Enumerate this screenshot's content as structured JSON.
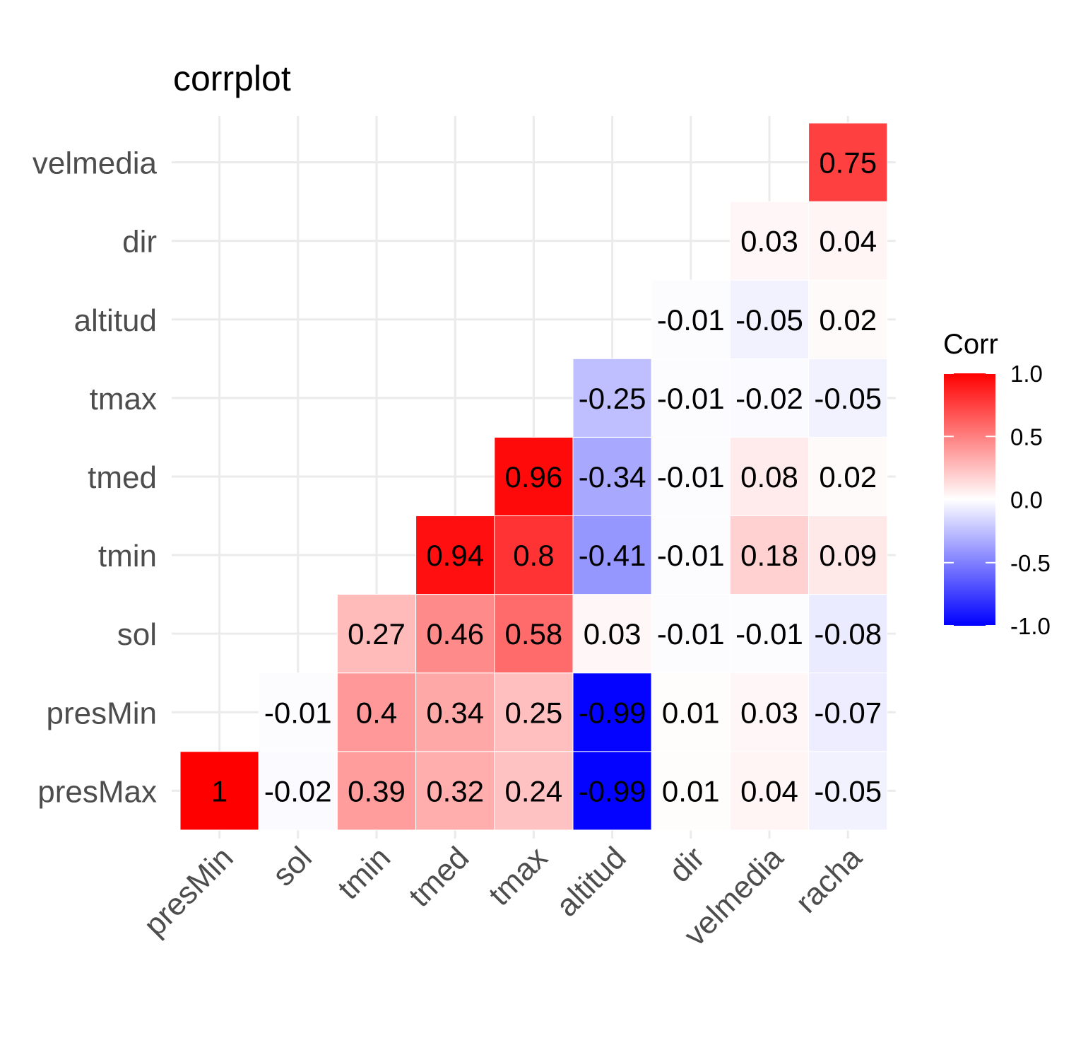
{
  "chart_data": {
    "type": "heatmap",
    "title": "corrplot",
    "x_categories": [
      "presMin",
      "sol",
      "tmin",
      "tmed",
      "tmax",
      "altitud",
      "dir",
      "velmedia",
      "racha"
    ],
    "y_categories": [
      "presMax",
      "presMin",
      "sol",
      "tmin",
      "tmed",
      "tmax",
      "altitud",
      "dir",
      "velmedia"
    ],
    "cells": [
      {
        "x": "presMin",
        "y": "presMax",
        "value": 1,
        "label": "1"
      },
      {
        "x": "sol",
        "y": "presMax",
        "value": -0.02,
        "label": "-0.02"
      },
      {
        "x": "tmin",
        "y": "presMax",
        "value": 0.39,
        "label": "0.39"
      },
      {
        "x": "tmed",
        "y": "presMax",
        "value": 0.32,
        "label": "0.32"
      },
      {
        "x": "tmax",
        "y": "presMax",
        "value": 0.24,
        "label": "0.24"
      },
      {
        "x": "altitud",
        "y": "presMax",
        "value": -0.99,
        "label": "-0.99"
      },
      {
        "x": "dir",
        "y": "presMax",
        "value": 0.01,
        "label": "0.01"
      },
      {
        "x": "velmedia",
        "y": "presMax",
        "value": 0.04,
        "label": "0.04"
      },
      {
        "x": "racha",
        "y": "presMax",
        "value": -0.05,
        "label": "-0.05"
      },
      {
        "x": "sol",
        "y": "presMin",
        "value": -0.01,
        "label": "-0.01"
      },
      {
        "x": "tmin",
        "y": "presMin",
        "value": 0.4,
        "label": "0.4"
      },
      {
        "x": "tmed",
        "y": "presMin",
        "value": 0.34,
        "label": "0.34"
      },
      {
        "x": "tmax",
        "y": "presMin",
        "value": 0.25,
        "label": "0.25"
      },
      {
        "x": "altitud",
        "y": "presMin",
        "value": -0.99,
        "label": "-0.99"
      },
      {
        "x": "dir",
        "y": "presMin",
        "value": 0.01,
        "label": "0.01"
      },
      {
        "x": "velmedia",
        "y": "presMin",
        "value": 0.03,
        "label": "0.03"
      },
      {
        "x": "racha",
        "y": "presMin",
        "value": -0.07,
        "label": "-0.07"
      },
      {
        "x": "tmin",
        "y": "sol",
        "value": 0.27,
        "label": "0.27"
      },
      {
        "x": "tmed",
        "y": "sol",
        "value": 0.46,
        "label": "0.46"
      },
      {
        "x": "tmax",
        "y": "sol",
        "value": 0.58,
        "label": "0.58"
      },
      {
        "x": "altitud",
        "y": "sol",
        "value": 0.03,
        "label": "0.03"
      },
      {
        "x": "dir",
        "y": "sol",
        "value": -0.01,
        "label": "-0.01"
      },
      {
        "x": "velmedia",
        "y": "sol",
        "value": -0.01,
        "label": "-0.01"
      },
      {
        "x": "racha",
        "y": "sol",
        "value": -0.08,
        "label": "-0.08"
      },
      {
        "x": "tmed",
        "y": "tmin",
        "value": 0.94,
        "label": "0.94"
      },
      {
        "x": "tmax",
        "y": "tmin",
        "value": 0.8,
        "label": "0.8"
      },
      {
        "x": "altitud",
        "y": "tmin",
        "value": -0.41,
        "label": "-0.41"
      },
      {
        "x": "dir",
        "y": "tmin",
        "value": -0.01,
        "label": "-0.01"
      },
      {
        "x": "velmedia",
        "y": "tmin",
        "value": 0.18,
        "label": "0.18"
      },
      {
        "x": "racha",
        "y": "tmin",
        "value": 0.09,
        "label": "0.09"
      },
      {
        "x": "tmax",
        "y": "tmed",
        "value": 0.96,
        "label": "0.96"
      },
      {
        "x": "altitud",
        "y": "tmed",
        "value": -0.34,
        "label": "-0.34"
      },
      {
        "x": "dir",
        "y": "tmed",
        "value": -0.01,
        "label": "-0.01"
      },
      {
        "x": "velmedia",
        "y": "tmed",
        "value": 0.08,
        "label": "0.08"
      },
      {
        "x": "racha",
        "y": "tmed",
        "value": 0.02,
        "label": "0.02"
      },
      {
        "x": "altitud",
        "y": "tmax",
        "value": -0.25,
        "label": "-0.25"
      },
      {
        "x": "dir",
        "y": "tmax",
        "value": -0.01,
        "label": "-0.01"
      },
      {
        "x": "velmedia",
        "y": "tmax",
        "value": -0.02,
        "label": "-0.02"
      },
      {
        "x": "racha",
        "y": "tmax",
        "value": -0.05,
        "label": "-0.05"
      },
      {
        "x": "dir",
        "y": "altitud",
        "value": -0.01,
        "label": "-0.01"
      },
      {
        "x": "velmedia",
        "y": "altitud",
        "value": -0.05,
        "label": "-0.05"
      },
      {
        "x": "racha",
        "y": "altitud",
        "value": 0.02,
        "label": "0.02"
      },
      {
        "x": "velmedia",
        "y": "dir",
        "value": 0.03,
        "label": "0.03"
      },
      {
        "x": "racha",
        "y": "dir",
        "value": 0.04,
        "label": "0.04"
      },
      {
        "x": "racha",
        "y": "velmedia",
        "value": 0.75,
        "label": "0.75"
      }
    ],
    "legend": {
      "title": "Corr",
      "placement": "right",
      "range": [
        -1.0,
        1.0
      ],
      "ticks": [
        "1.0",
        "0.5",
        "0.0",
        "-0.5",
        "-1.0"
      ],
      "tick_values": [
        1.0,
        0.5,
        0.0,
        -0.5,
        -1.0
      ]
    },
    "colors": {
      "low": "#0000ff",
      "mid": "#ffffff",
      "high": "#ff0000"
    },
    "grid": true
  }
}
